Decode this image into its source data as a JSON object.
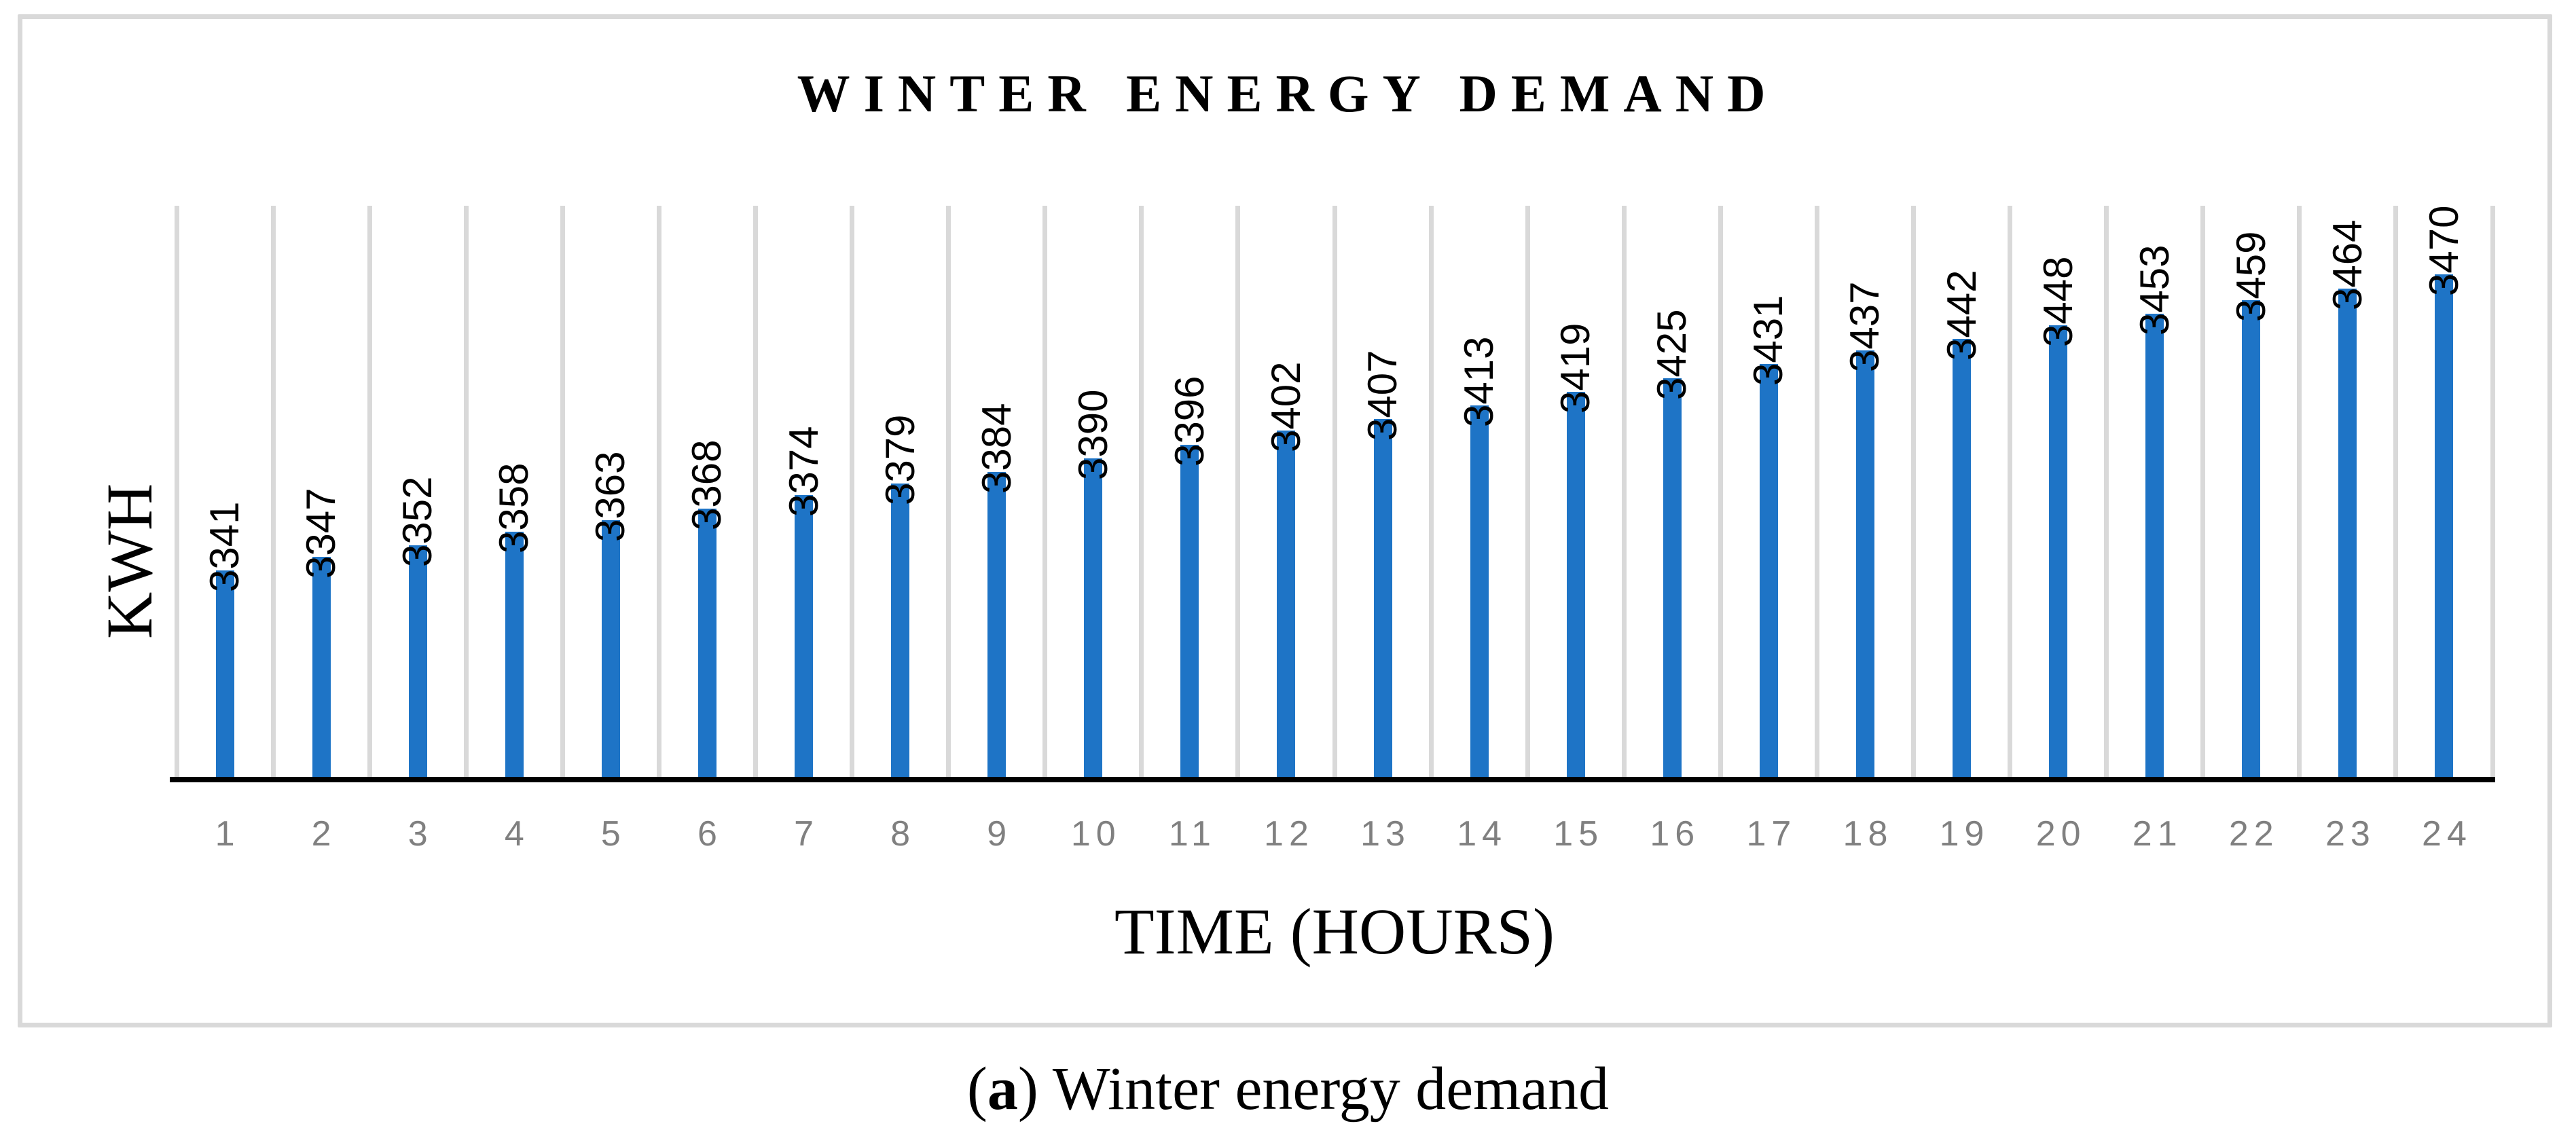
{
  "figure": {
    "caption": {
      "open": "(",
      "marker": "a",
      "close": ")",
      "text": " Winter energy demand"
    }
  },
  "chart_data": {
    "type": "bar",
    "title": "WINTER ENERGY DEMAND",
    "xlabel": "TIME (HOURS)",
    "ylabel": "KWH",
    "categories": [
      "1",
      "2",
      "3",
      "4",
      "5",
      "6",
      "7",
      "8",
      "9",
      "10",
      "11",
      "12",
      "13",
      "14",
      "15",
      "16",
      "17",
      "18",
      "19",
      "20",
      "21",
      "22",
      "23",
      "24"
    ],
    "values": [
      3341,
      3347,
      3352,
      3358,
      3363,
      3368,
      3374,
      3379,
      3384,
      3390,
      3396,
      3402,
      3407,
      3413,
      3419,
      3425,
      3431,
      3437,
      3442,
      3448,
      3453,
      3459,
      3464,
      3470
    ],
    "data_labels_shown": true,
    "data_label_rotation_deg": 90,
    "ylim": [
      3250,
      3500
    ],
    "grid": "vertical-category-boundaries",
    "legend": "none",
    "colors": {
      "bar": "#1E74C6",
      "gridline": "#D9D9D9",
      "frame_border": "#D9D9D9",
      "axis_line": "#000000",
      "tick_label": "#808080",
      "data_label": "#000000",
      "title": "#000000"
    }
  }
}
